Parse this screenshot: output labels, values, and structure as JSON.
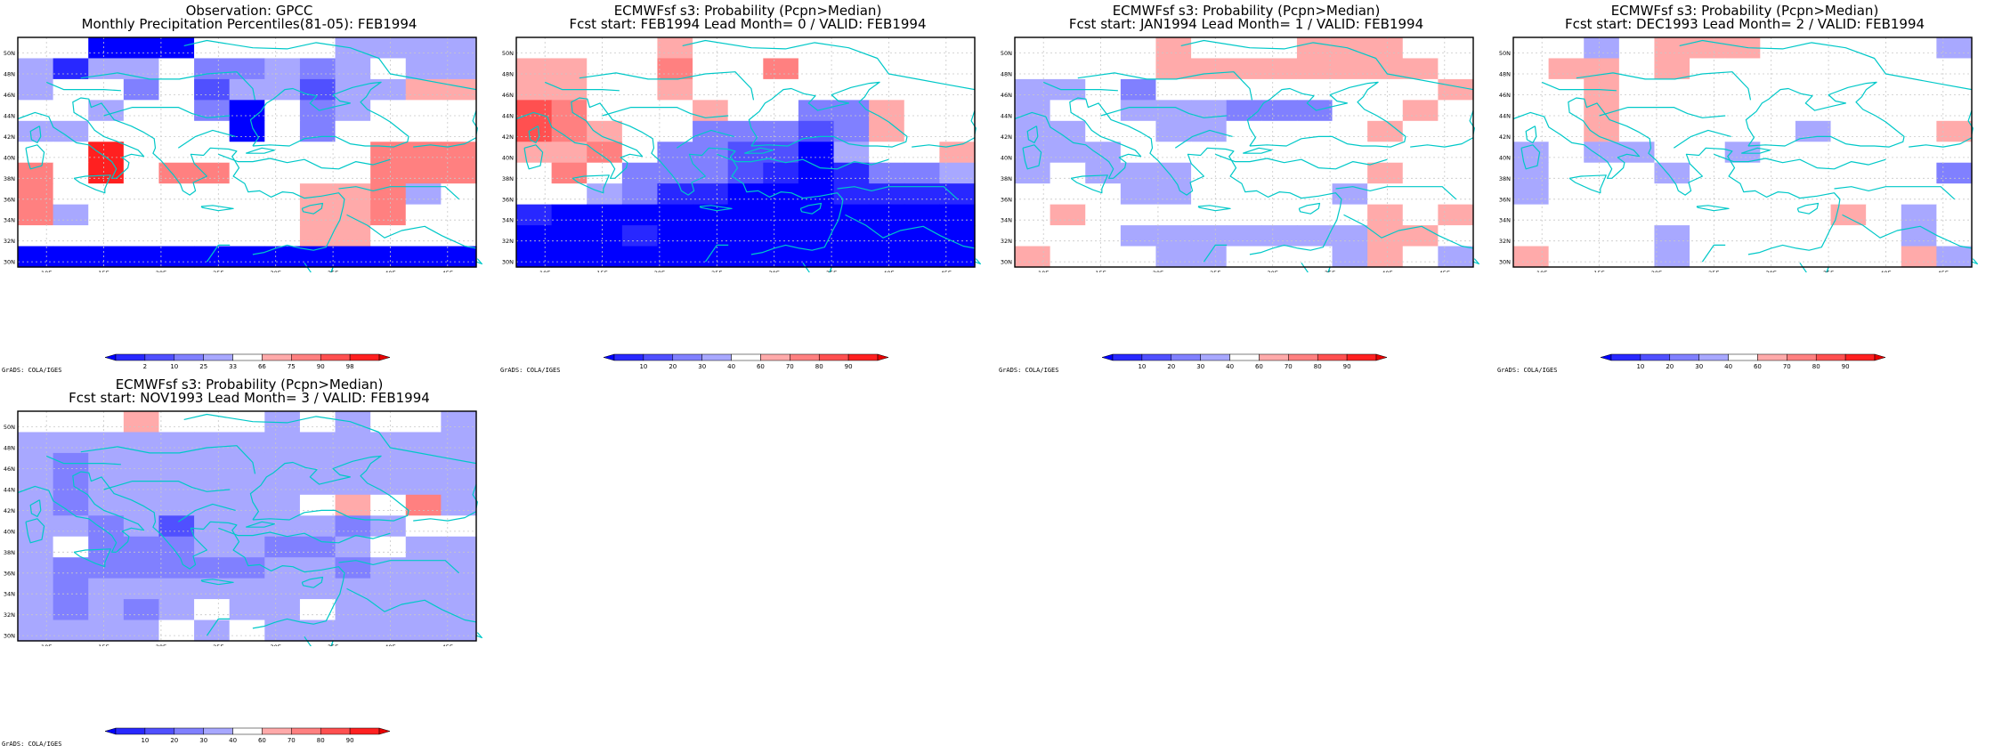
{
  "colors": {
    "scale": [
      "#0000ff",
      "#2828ff",
      "#5050ff",
      "#8080ff",
      "#a8a8ff",
      "#ffffff",
      "#ffaaaa",
      "#ff8080",
      "#ff5050",
      "#ff2020",
      "#e80000"
    ],
    "coast": "#00c8c8",
    "grid": "#c8c8c8"
  },
  "axes": {
    "lat_labels": [
      "30N",
      "32N",
      "34N",
      "36N",
      "38N",
      "40N",
      "42N",
      "44N",
      "46N",
      "48N",
      "50N"
    ],
    "lon_labels": [
      "10E",
      "15E",
      "20E",
      "25E",
      "30E",
      "35E",
      "40E",
      "45E"
    ]
  },
  "colorbars": {
    "observation": [
      "2",
      "10",
      "25",
      "33",
      "66",
      "75",
      "90",
      "98"
    ],
    "forecast": [
      "10",
      "20",
      "30",
      "40",
      "60",
      "70",
      "80",
      "90"
    ]
  },
  "credit": "GrADS: COLA/IGES",
  "panels": [
    {
      "title_line1": "Observation: GPCC",
      "title_line2": "Monthly Precipitation Percentiles(81-05): FEB1994",
      "colorbar": "observation",
      "grid": [
        "5500055554444",
        "4144533434544",
        "4553524424466",
        "5545530534555",
        "4455550535555",
        "5595555555777",
        "7595775555777",
        "7555555566745",
        "7455555566755",
        "5555555566555",
        "0000000000000"
      ]
    },
    {
      "title_line1": "ECMWFsf s3: Probability (Pcpn>Median)",
      "title_line2": "Fcst start: FEB1994  Lead Month= 0 / VALID: FEB1994",
      "colorbar": "forecast",
      "grid": [
        "5555655555555",
        "6655755755555",
        "6655655555555",
        "8755565533655",
        "8765533323655",
        "6675332204556",
        "5753332101334",
        "5543110001111",
        "1000000000000",
        "0001000000000",
        "0000000000000"
      ]
    },
    {
      "title_line1": "ECMWFsf s3: Probability (Pcpn>Median)",
      "title_line2": "Fcst start: JAN1994  Lead Month= 1 / VALID: FEB1994",
      "colorbar": "forecast",
      "grid": [
        "5555655566655",
        "5555666666665",
        "4453555555556",
        "4554443335565",
        "4455445555655",
        "4445555555555",
        "4544455555655",
        "5554455554555",
        "5655555555656",
        "5554444444665",
        "6555445554654"
      ]
    },
    {
      "title_line1": "ECMWFsf s3: Probability (Pcpn>Median)",
      "title_line2": "Fcst start: DEC1993  Lead Month= 2 / VALID: FEB1994",
      "colorbar": "forecast",
      "grid": [
        "5545666555554",
        "5665655555555",
        "5565555555555",
        "5565555555555",
        "5565555545556",
        "4544554555555",
        "4555455555553",
        "4555555555555",
        "5555555556545",
        "5555455555545",
        "6555455555564"
      ]
    },
    {
      "title_line1": "ECMWFsf s3: Probability (Pcpn>Median)",
      "title_line2": "Fcst start: NOV1993  Lead Month= 3 / VALID: FEB1994",
      "colorbar": "forecast",
      "grid": [
        "5556555454554",
        "4444444444444",
        "4344444444444",
        "4344444444444",
        "4344444456574",
        "4434244443455",
        "4533344334544",
        "4333333443444",
        "4344444444444",
        "4343454454444",
        "4444545444444"
      ]
    }
  ]
}
